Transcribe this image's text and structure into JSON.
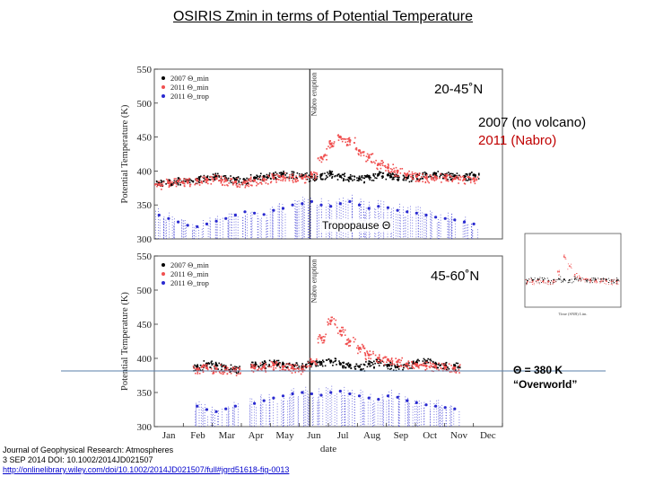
{
  "slide": {
    "title": "OSIRIS Zmin in terms of Potential Temperature",
    "region_top": "20-45˚N",
    "region_bottom": "45-60˚N",
    "legend_2007": "2007 (no volcano)",
    "legend_2011": "2011 (Nabro)",
    "tropopause_label": "Tropopause Θ",
    "overworld_line1": "Θ = 380 K",
    "overworld_line2": "“Overworld”",
    "citation_line1": "Journal of Geophysical Research: Atmospheres",
    "citation_line2": "3 SEP 2014 DOI: 10.1002/2014JD021507",
    "citation_line3": "http://onlinelibrary.wiley.com/doi/10.1002/2014JD021507/full#jgrd51618-fig-0013"
  },
  "colors": {
    "series_2007": "#000000",
    "series_2011": "#f05050",
    "series_tropopause": "#2a2ad0",
    "overworld_line": "#5a7fa8",
    "eruption_line": "#000000"
  },
  "chart_data": [
    {
      "type": "scatter",
      "ylabel": "Potential Temperature (K)",
      "ylim": [
        300,
        550
      ],
      "yticks": [
        300,
        350,
        400,
        450,
        500,
        550
      ],
      "annotation": "Nabro eruption",
      "legend": [
        "2007 Θ_min",
        "2011 Θ_min",
        "2011 Θ_trop"
      ],
      "series": [
        {
          "name": "2007 Θ_min",
          "x": [
            5,
            15,
            25,
            35,
            45,
            55,
            65,
            75,
            85,
            95,
            105,
            115,
            125,
            135,
            145,
            155,
            165,
            175,
            185,
            195,
            205,
            215,
            225,
            235,
            245,
            255,
            265,
            275,
            285,
            295,
            305,
            315,
            325,
            335
          ],
          "y": [
            382,
            384,
            386,
            385,
            388,
            390,
            392,
            389,
            387,
            386,
            390,
            392,
            394,
            396,
            395,
            393,
            391,
            394,
            396,
            392,
            390,
            389,
            392,
            395,
            394,
            392,
            390,
            393,
            395,
            396,
            394,
            393,
            392,
            394
          ]
        },
        {
          "name": "2011 Θ_min",
          "x": [
            5,
            15,
            25,
            35,
            45,
            55,
            65,
            75,
            85,
            95,
            105,
            115,
            125,
            135,
            145,
            155,
            165,
            175,
            185,
            195,
            205,
            215,
            225,
            235,
            245,
            255,
            265,
            275,
            285,
            295,
            305,
            315,
            325,
            335
          ],
          "y": [
            380,
            383,
            385,
            384,
            386,
            388,
            389,
            386,
            384,
            383,
            386,
            388,
            390,
            392,
            391,
            390,
            395,
            420,
            440,
            450,
            445,
            430,
            420,
            410,
            405,
            400,
            395,
            392,
            390,
            391,
            390,
            389,
            388,
            389
          ]
        },
        {
          "name": "2011 Θ_trop",
          "x": [
            5,
            15,
            25,
            35,
            45,
            55,
            65,
            75,
            85,
            95,
            105,
            115,
            125,
            135,
            145,
            155,
            165,
            175,
            185,
            195,
            205,
            215,
            225,
            235,
            245,
            255,
            265,
            275,
            285,
            295,
            305,
            315,
            325,
            335
          ],
          "y": [
            335,
            330,
            325,
            320,
            318,
            322,
            326,
            330,
            335,
            340,
            338,
            336,
            342,
            345,
            350,
            352,
            355,
            350,
            348,
            352,
            355,
            350,
            345,
            348,
            346,
            342,
            340,
            338,
            335,
            332,
            330,
            328,
            325,
            322
          ]
        }
      ]
    },
    {
      "type": "scatter",
      "xlabel": "date",
      "ylabel": "Potential Temperature (K)",
      "ylim": [
        300,
        550
      ],
      "yticks": [
        300,
        350,
        400,
        450,
        500,
        550
      ],
      "xticks": [
        "Jan",
        "Feb",
        "Mar",
        "Apr",
        "May",
        "Jun",
        "Jul",
        "Aug",
        "Sep",
        "Oct",
        "Nov",
        "Dec"
      ],
      "annotation": "Nabro eruption",
      "legend": [
        "2007 Θ_min",
        "2011 Θ_min",
        "2011 Θ_trop"
      ],
      "series": [
        {
          "name": "2007 Θ_min",
          "x": [
            45,
            55,
            65,
            75,
            85,
            105,
            115,
            125,
            135,
            145,
            155,
            165,
            175,
            185,
            195,
            205,
            215,
            225,
            235,
            245,
            255,
            265,
            275,
            285,
            295,
            305,
            315
          ],
          "y": [
            388,
            392,
            390,
            386,
            384,
            390,
            392,
            394,
            392,
            390,
            388,
            392,
            394,
            396,
            392,
            390,
            388,
            392,
            394,
            390,
            388,
            392,
            394,
            395,
            392,
            390,
            389
          ]
        },
        {
          "name": "2011 Θ_min",
          "x": [
            45,
            55,
            65,
            75,
            85,
            105,
            115,
            125,
            135,
            145,
            155,
            165,
            175,
            185,
            195,
            205,
            215,
            225,
            235,
            245,
            255,
            265,
            275,
            285,
            295,
            305,
            315
          ],
          "y": [
            384,
            386,
            385,
            383,
            382,
            386,
            388,
            390,
            388,
            386,
            384,
            395,
            430,
            455,
            440,
            425,
            415,
            405,
            400,
            398,
            395,
            392,
            390,
            389,
            388,
            387,
            386
          ]
        },
        {
          "name": "2011 Θ_trop",
          "x": [
            45,
            55,
            65,
            75,
            85,
            105,
            115,
            125,
            135,
            145,
            155,
            165,
            175,
            185,
            195,
            205,
            215,
            225,
            235,
            245,
            255,
            265,
            275,
            285,
            295,
            305,
            315
          ],
          "y": [
            330,
            325,
            322,
            326,
            330,
            334,
            338,
            342,
            345,
            348,
            350,
            348,
            346,
            350,
            352,
            348,
            345,
            342,
            340,
            345,
            343,
            338,
            335,
            332,
            330,
            328,
            326
          ]
        }
      ]
    },
    {
      "type": "scatter",
      "inset": true,
      "xlabel": "Time (SNB) Lim.",
      "legend": [
        "2007 Θ_min",
        "2011 Θ_min"
      ],
      "series": [
        {
          "name": "2007 Θ_min",
          "x": [
            10,
            30,
            50,
            70,
            90,
            110,
            130,
            150,
            170,
            190,
            210,
            230,
            250,
            270,
            290,
            310,
            330,
            350
          ],
          "y": [
            390,
            392,
            394,
            392,
            390,
            393,
            395,
            394,
            392,
            395,
            396,
            394,
            392,
            393,
            395,
            394,
            392,
            391
          ]
        },
        {
          "name": "2011 Θ_min",
          "x": [
            10,
            30,
            50,
            70,
            90,
            110,
            130,
            150,
            170,
            190,
            210,
            230,
            250,
            270,
            290,
            310,
            330,
            350
          ],
          "y": [
            386,
            388,
            390,
            388,
            386,
            389,
            420,
            470,
            440,
            410,
            400,
            395,
            390,
            389,
            388,
            388,
            387,
            386
          ]
        }
      ]
    }
  ]
}
